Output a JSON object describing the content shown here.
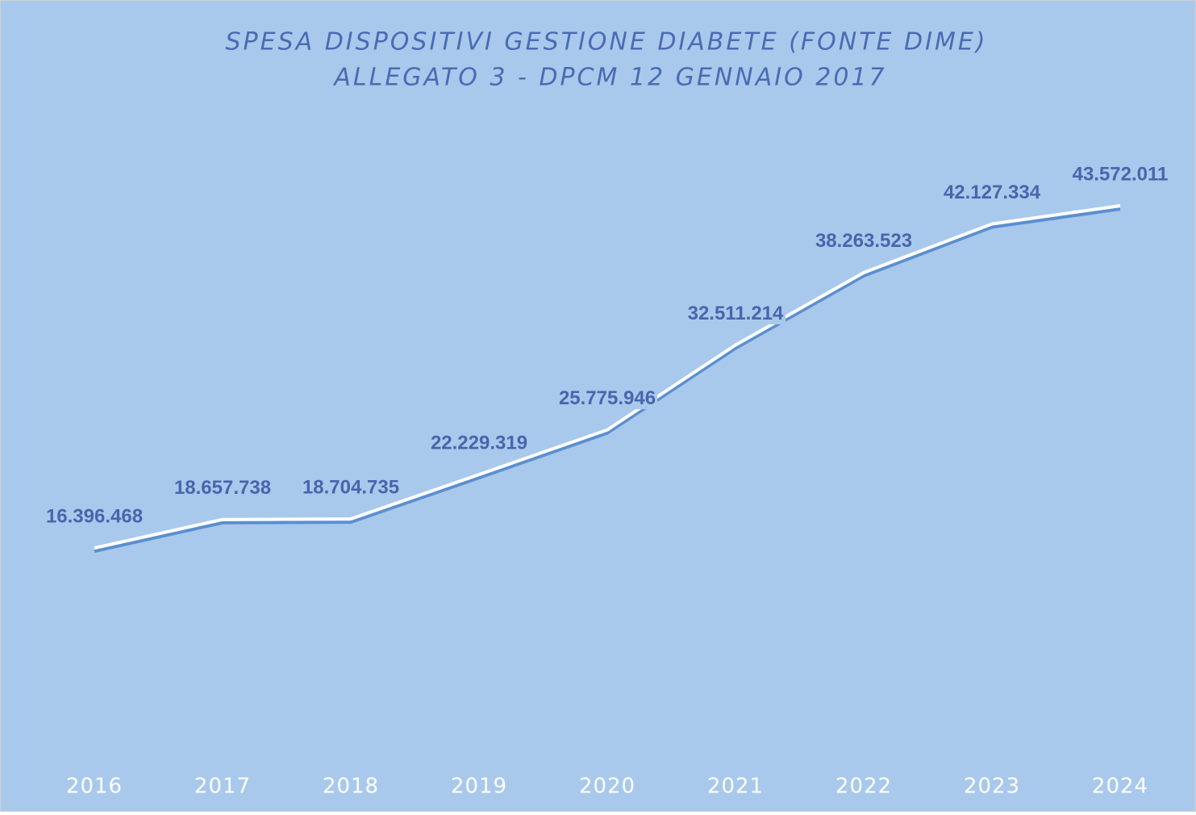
{
  "chart_data": {
    "type": "line",
    "title": "SPESA DISPOSITIVI GESTIONE DIABETE (FONTE DIME)",
    "subtitle": "ALLEGATO 3 - DPCM 12 GENNAIO 2017",
    "categories": [
      "2016",
      "2017",
      "2018",
      "2019",
      "2020",
      "2021",
      "2022",
      "2023",
      "2024"
    ],
    "values": [
      16396468,
      18657738,
      18704735,
      22229319,
      25775946,
      32511214,
      38263523,
      42127334,
      43572011
    ],
    "value_labels": [
      "16.396.468",
      "18.657.738",
      "18.704.735",
      "22.229.319",
      "25.775.946",
      "32.511.214",
      "38.263.523",
      "42.127.334",
      "43.572.011"
    ],
    "color": "#ffffff"
  }
}
